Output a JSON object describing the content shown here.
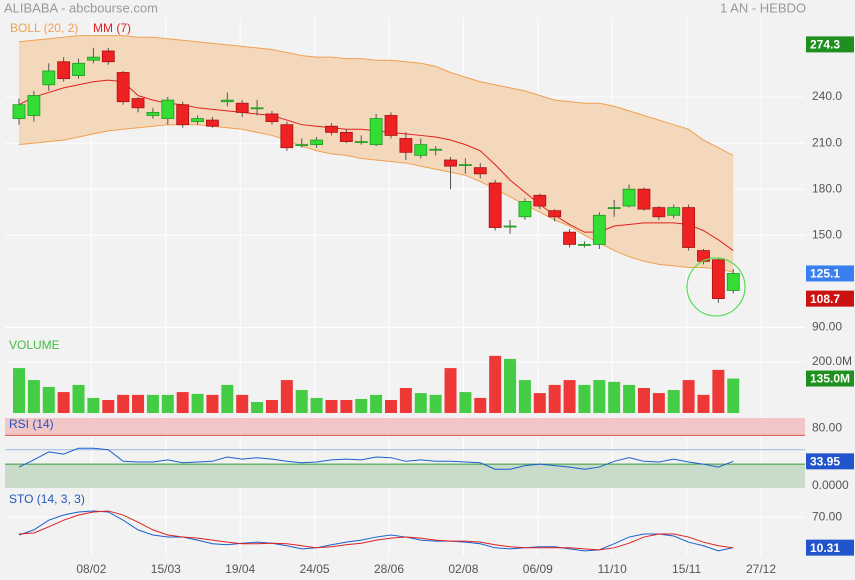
{
  "header": {
    "title": "ALIBABA - abcbourse.com",
    "period": "1 AN - HEBDO"
  },
  "x_labels": [
    "08/02",
    "15/03",
    "19/04",
    "24/05",
    "28/06",
    "02/08",
    "06/09",
    "11/10",
    "15/11",
    "27/12"
  ],
  "chart_data": [
    {
      "type": "candlestick",
      "up_color": "#33dd33",
      "down_color": "#ee2222",
      "open": [
        226,
        228,
        248,
        263,
        254,
        264,
        270,
        256,
        239,
        228,
        226,
        235,
        224,
        225,
        237,
        236,
        233,
        229,
        222,
        209,
        209,
        221,
        217,
        211,
        209,
        228,
        213,
        202,
        206,
        199,
        196,
        194,
        184,
        156,
        162,
        176,
        166,
        152,
        144,
        144,
        168,
        169,
        180,
        168,
        163,
        168,
        140,
        134,
        114
      ],
      "high": [
        239,
        244,
        262,
        266,
        265,
        272,
        272,
        257,
        240,
        233,
        240,
        237,
        228,
        227,
        243,
        238,
        238,
        231,
        224,
        213,
        214,
        223,
        219,
        215,
        229,
        230,
        217,
        213,
        208,
        201,
        200,
        197,
        186,
        160,
        174,
        177,
        167,
        154,
        146,
        165,
        173,
        183,
        181,
        169,
        170,
        170,
        141,
        135,
        128
      ],
      "low": [
        222,
        224,
        244,
        250,
        252,
        262,
        261,
        235,
        230,
        226,
        222,
        220,
        222,
        220,
        234,
        227,
        228,
        222,
        205,
        207,
        207,
        215,
        210,
        209,
        208,
        213,
        199,
        200,
        202,
        180,
        190,
        187,
        153,
        151,
        160,
        167,
        159,
        142,
        142,
        141,
        162,
        168,
        166,
        160,
        161,
        140,
        131,
        106,
        112
      ],
      "close": [
        235,
        241,
        257,
        252,
        262,
        266,
        263,
        237,
        233,
        230,
        238,
        222,
        226,
        221,
        238,
        230,
        233,
        224,
        207,
        209,
        212,
        217,
        211,
        211,
        226,
        215,
        204,
        209,
        206,
        195,
        196,
        190,
        155,
        156,
        172,
        169,
        162,
        144,
        144,
        163,
        168,
        180,
        167,
        162,
        168,
        142,
        133,
        108.7,
        125.1
      ],
      "bollinger": {
        "name": "BOLL (20, 2)",
        "color": "#f0a050",
        "fill": "#f3d8bc",
        "upper": [
          276,
          277,
          278,
          279,
          280,
          280,
          280,
          280,
          279,
          279,
          278,
          277,
          276,
          275,
          274,
          273,
          272,
          271,
          269,
          267,
          266,
          266,
          265,
          265,
          264,
          264,
          263,
          262,
          260,
          256,
          253,
          250,
          248,
          246,
          244,
          241,
          238,
          237,
          236,
          236,
          234,
          231,
          228,
          225,
          222,
          219,
          212,
          207,
          202
        ],
        "lower": [
          209,
          210,
          211,
          212,
          214,
          216,
          218,
          219,
          220,
          221,
          222,
          222,
          222,
          221,
          220,
          219,
          217,
          215,
          212,
          208,
          205,
          203,
          202,
          200,
          199,
          198,
          197,
          195,
          193,
          191,
          189,
          185,
          180,
          175,
          170,
          165,
          160,
          156,
          150,
          145,
          140,
          136,
          133,
          131,
          130,
          129,
          129,
          128,
          126
        ]
      },
      "mm": {
        "name": "MM (7)",
        "color": "#e02020",
        "values": [
          235,
          240,
          243,
          246,
          248,
          250,
          251,
          250,
          241,
          238,
          236,
          235,
          233,
          232,
          231,
          230,
          229,
          228,
          225,
          222,
          221,
          220,
          219,
          219,
          218,
          217,
          216,
          215,
          214,
          212,
          209,
          205,
          196,
          186,
          178,
          170,
          163,
          157,
          152,
          152,
          156,
          157,
          158,
          158,
          158,
          157,
          153,
          147,
          140
        ]
      },
      "ylim": [
        85,
        291.5
      ],
      "yticks": [
        {
          "value": 240,
          "label": "240.0"
        },
        {
          "value": 210,
          "label": "210.0"
        },
        {
          "value": 180,
          "label": "180.0"
        },
        {
          "value": 150,
          "label": "150.0"
        },
        {
          "value": 90,
          "label": "90.00"
        }
      ],
      "markers": [
        {
          "value": 274.3,
          "color": "#1f8f1f"
        },
        {
          "value": 125.1,
          "color": "#3a7ff0"
        },
        {
          "value": 108.7,
          "color": "#cc1111"
        }
      ]
    },
    {
      "type": "volume",
      "title": "VOLUME",
      "title_color": "#44bb44",
      "values": [
        176,
        129,
        102,
        82,
        110,
        59,
        51,
        71,
        71,
        71,
        71,
        82,
        75,
        71,
        110,
        71,
        43,
        51,
        129,
        90,
        59,
        51,
        51,
        55,
        71,
        51,
        98,
        78,
        71,
        176,
        82,
        59,
        224,
        212,
        129,
        78,
        110,
        129,
        110,
        129,
        122,
        110,
        98,
        78,
        90,
        129,
        71,
        169,
        135
      ],
      "ylim": [
        0,
        286
      ],
      "yticks": [
        {
          "value": 200,
          "label": "200.0M"
        }
      ],
      "markers": [
        {
          "value": 135,
          "label": "135.0M",
          "color": "#1f8f1f"
        }
      ]
    },
    {
      "type": "rsi",
      "title": "RSI (14)",
      "title_color": "#2255bb",
      "color": "#1a5fd0",
      "values": [
        26,
        36,
        47,
        44,
        52,
        52,
        50,
        34,
        33,
        33,
        36,
        32,
        33,
        34,
        40,
        37,
        39,
        37,
        34,
        32,
        33,
        36,
        37,
        36,
        40,
        39,
        34,
        36,
        34,
        34,
        33,
        32,
        23,
        23,
        28,
        30,
        28,
        26,
        23,
        26,
        34,
        39,
        34,
        33,
        37,
        33,
        30,
        26,
        33.95
      ],
      "overbought": 70,
      "middle": 50,
      "oversold": 30,
      "ylim": [
        -3,
        94
      ],
      "yticks": [
        {
          "value": 80,
          "label": "80.00"
        },
        {
          "value": 0,
          "label": "0.0000"
        }
      ],
      "markers": [
        {
          "value": 33.95,
          "color": "#2255cc"
        }
      ]
    },
    {
      "type": "sto",
      "title": "STO (14, 3, 3)",
      "title_color": "#2255bb",
      "series": [
        {
          "color": "#1a5fd0",
          "values": [
            35,
            45,
            64,
            74,
            80,
            82,
            80,
            64,
            45,
            35,
            31,
            31,
            25,
            18,
            16,
            19,
            21,
            19,
            14,
            8,
            10,
            16,
            21,
            25,
            31,
            35,
            31,
            25,
            23,
            23,
            21,
            18,
            10,
            8,
            10,
            12,
            12,
            8,
            4,
            6,
            18,
            31,
            37,
            37,
            33,
            21,
            14,
            4,
            10.31
          ]
        },
        {
          "color": "#e02020",
          "values": [
            37,
            39,
            51,
            64,
            74,
            80,
            82,
            74,
            60,
            45,
            35,
            31,
            29,
            25,
            21,
            18,
            18,
            19,
            18,
            14,
            10,
            12,
            16,
            19,
            25,
            29,
            31,
            29,
            25,
            23,
            23,
            21,
            16,
            12,
            10,
            10,
            10,
            10,
            8,
            6,
            10,
            19,
            31,
            37,
            37,
            31,
            21,
            14,
            10
          ]
        }
      ],
      "ylim": [
        -6,
        119
      ],
      "yticks": [
        {
          "value": 70,
          "label": "70.00"
        }
      ],
      "markers": [
        {
          "value": 10.31,
          "color": "#2255cc"
        }
      ]
    }
  ]
}
